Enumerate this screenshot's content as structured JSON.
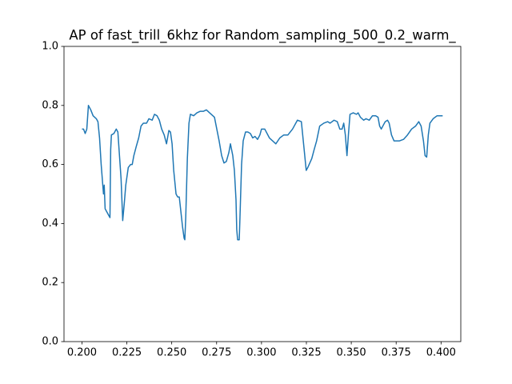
{
  "chart_data": {
    "type": "line",
    "title": "AP of fast_trill_6khz for Random_sampling_500_0.2_warm_",
    "x": [
      0.2,
      0.2009,
      0.2018,
      0.2027,
      0.2036,
      0.2049,
      0.2062,
      0.208,
      0.2089,
      0.2098,
      0.2107,
      0.2116,
      0.212,
      0.2124,
      0.2129,
      0.2138,
      0.2147,
      0.2156,
      0.216,
      0.2164,
      0.2178,
      0.2191,
      0.22,
      0.2209,
      0.2218,
      0.2227,
      0.2236,
      0.2244,
      0.2258,
      0.2271,
      0.228,
      0.2289,
      0.2302,
      0.2316,
      0.2329,
      0.2342,
      0.236,
      0.2373,
      0.2391,
      0.2404,
      0.2418,
      0.2431,
      0.2444,
      0.2458,
      0.2471,
      0.2484,
      0.2493,
      0.2502,
      0.2511,
      0.2524,
      0.2533,
      0.2542,
      0.2551,
      0.256,
      0.2569,
      0.2573,
      0.2578,
      0.2587,
      0.2596,
      0.2604,
      0.2622,
      0.264,
      0.2658,
      0.2676,
      0.2693,
      0.2711,
      0.2729,
      0.2738,
      0.2751,
      0.2764,
      0.2778,
      0.2791,
      0.2804,
      0.2818,
      0.2827,
      0.284,
      0.2849,
      0.2858,
      0.2862,
      0.2867,
      0.2876,
      0.288,
      0.2889,
      0.2898,
      0.2911,
      0.2924,
      0.2938,
      0.2951,
      0.2964,
      0.2978,
      0.2991,
      0.3,
      0.3018,
      0.3044,
      0.308,
      0.3102,
      0.3124,
      0.3147,
      0.3173,
      0.32,
      0.3222,
      0.3236,
      0.3249,
      0.3258,
      0.328,
      0.3293,
      0.3307,
      0.3324,
      0.3347,
      0.3369,
      0.3382,
      0.3404,
      0.3422,
      0.3436,
      0.3449,
      0.3458,
      0.3467,
      0.3476,
      0.3484,
      0.3493,
      0.3511,
      0.3529,
      0.3538,
      0.3551,
      0.3569,
      0.3582,
      0.36,
      0.3618,
      0.3636,
      0.3649,
      0.3658,
      0.3667,
      0.368,
      0.3689,
      0.3702,
      0.3711,
      0.3724,
      0.3738,
      0.3769,
      0.3791,
      0.3813,
      0.3836,
      0.3858,
      0.3876,
      0.3889,
      0.3902,
      0.3911,
      0.392,
      0.3929,
      0.3938,
      0.3956,
      0.3978,
      0.4,
      0.4009
    ],
    "series": [
      {
        "name": "AP",
        "color": "#1f77b4",
        "values": [
          0.72,
          0.72,
          0.705,
          0.72,
          0.8,
          0.785,
          0.765,
          0.755,
          0.745,
          0.69,
          0.6,
          0.53,
          0.5,
          0.53,
          0.45,
          0.44,
          0.43,
          0.42,
          0.65,
          0.7,
          0.705,
          0.72,
          0.71,
          0.63,
          0.55,
          0.41,
          0.47,
          0.53,
          0.59,
          0.6,
          0.6,
          0.63,
          0.66,
          0.69,
          0.73,
          0.74,
          0.74,
          0.755,
          0.75,
          0.77,
          0.765,
          0.75,
          0.72,
          0.7,
          0.67,
          0.715,
          0.71,
          0.67,
          0.58,
          0.5,
          0.49,
          0.49,
          0.44,
          0.39,
          0.35,
          0.345,
          0.42,
          0.62,
          0.74,
          0.77,
          0.765,
          0.775,
          0.78,
          0.78,
          0.785,
          0.775,
          0.765,
          0.76,
          0.72,
          0.68,
          0.63,
          0.605,
          0.61,
          0.64,
          0.67,
          0.63,
          0.58,
          0.48,
          0.38,
          0.345,
          0.345,
          0.42,
          0.6,
          0.68,
          0.71,
          0.71,
          0.705,
          0.69,
          0.695,
          0.685,
          0.7,
          0.72,
          0.72,
          0.69,
          0.67,
          0.69,
          0.7,
          0.7,
          0.72,
          0.75,
          0.745,
          0.66,
          0.58,
          0.59,
          0.62,
          0.65,
          0.68,
          0.73,
          0.74,
          0.745,
          0.74,
          0.75,
          0.745,
          0.72,
          0.72,
          0.74,
          0.7,
          0.63,
          0.7,
          0.77,
          0.775,
          0.77,
          0.775,
          0.76,
          0.75,
          0.755,
          0.75,
          0.765,
          0.765,
          0.76,
          0.73,
          0.72,
          0.735,
          0.745,
          0.75,
          0.74,
          0.7,
          0.68,
          0.68,
          0.685,
          0.7,
          0.72,
          0.73,
          0.745,
          0.73,
          0.68,
          0.63,
          0.625,
          0.7,
          0.74,
          0.755,
          0.765,
          0.765,
          0.765
        ]
      }
    ],
    "xlim": [
      0.19,
      0.411
    ],
    "ylim": [
      0,
      1
    ],
    "xticks": [
      {
        "value": 0.2,
        "label": "0.200"
      },
      {
        "value": 0.225,
        "label": "0.225"
      },
      {
        "value": 0.25,
        "label": "0.250"
      },
      {
        "value": 0.275,
        "label": "0.275"
      },
      {
        "value": 0.3,
        "label": "0.300"
      },
      {
        "value": 0.325,
        "label": "0.325"
      },
      {
        "value": 0.35,
        "label": "0.350"
      },
      {
        "value": 0.375,
        "label": "0.375"
      },
      {
        "value": 0.4,
        "label": "0.400"
      }
    ],
    "yticks": [
      {
        "value": 0,
        "label": "0.0"
      },
      {
        "value": 0.2,
        "label": "0.2"
      },
      {
        "value": 0.4,
        "label": "0.4"
      },
      {
        "value": 0.6,
        "label": "0.6"
      },
      {
        "value": 0.8,
        "label": "0.8"
      },
      {
        "value": 1,
        "label": "1.0"
      }
    ],
    "grid": false
  }
}
